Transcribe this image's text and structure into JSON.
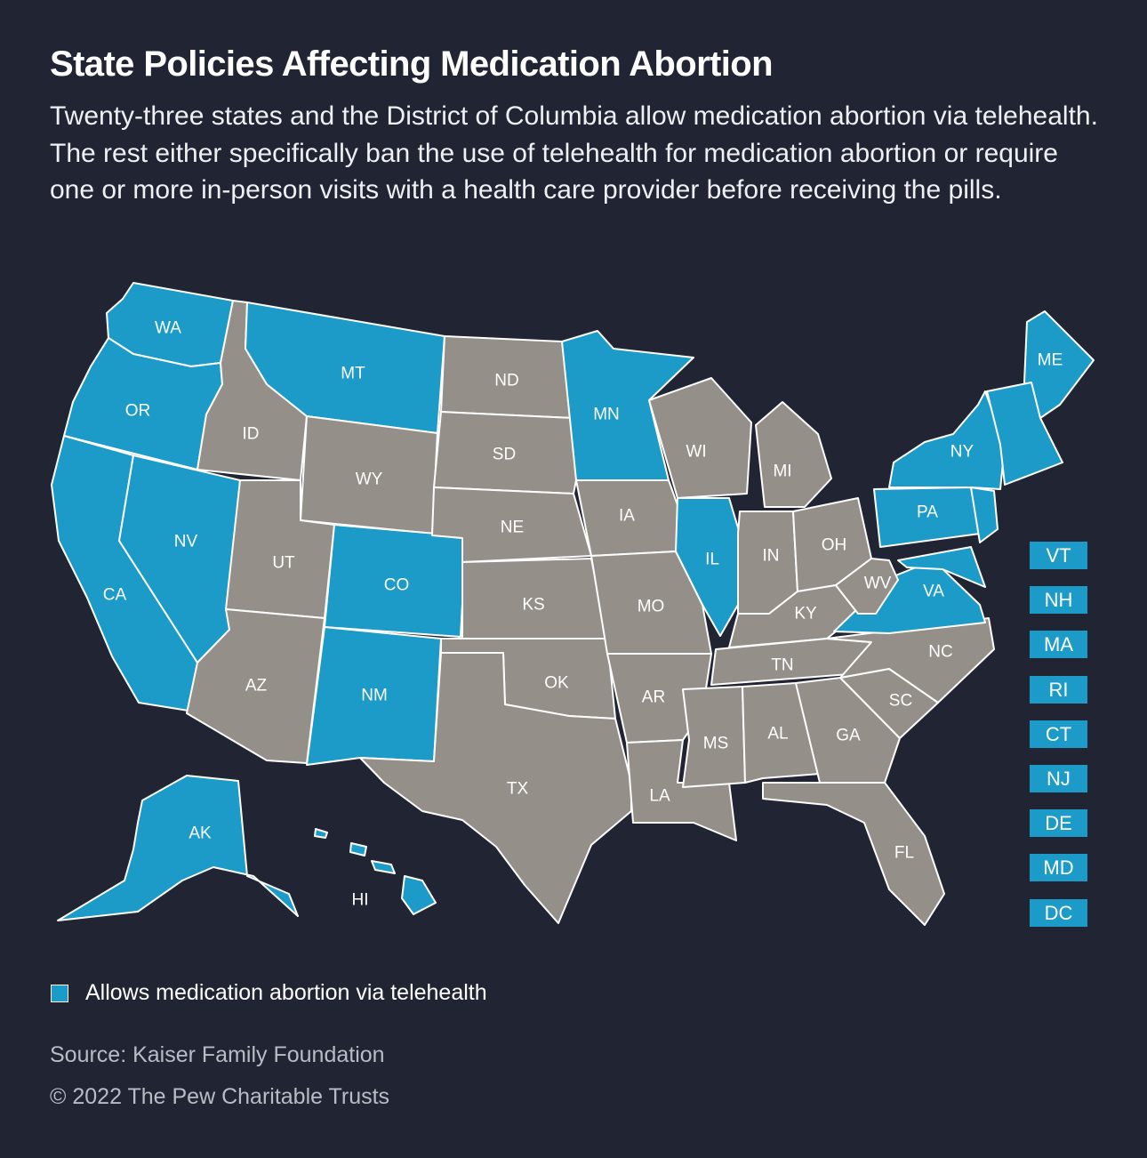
{
  "title": "State Policies Affecting Medication Abortion",
  "subtitle": "Twenty-three states and the District of Columbia allow medication abortion via telehealth. The rest either specifically ban the use of telehealth for medication abortion or require one or more in-person visits with a health care provider before receiving the pills.",
  "colors": {
    "background": "#212433",
    "allows": "#1c9bc9",
    "other": "#958f89",
    "border": "#ffffff"
  },
  "states": [
    {
      "code": "WA",
      "allows": true
    },
    {
      "code": "OR",
      "allows": true
    },
    {
      "code": "CA",
      "allows": true
    },
    {
      "code": "NV",
      "allows": true
    },
    {
      "code": "ID",
      "allows": false
    },
    {
      "code": "MT",
      "allows": true
    },
    {
      "code": "WY",
      "allows": false
    },
    {
      "code": "UT",
      "allows": false
    },
    {
      "code": "AZ",
      "allows": false
    },
    {
      "code": "CO",
      "allows": true
    },
    {
      "code": "NM",
      "allows": true
    },
    {
      "code": "ND",
      "allows": false
    },
    {
      "code": "SD",
      "allows": false
    },
    {
      "code": "NE",
      "allows": false
    },
    {
      "code": "KS",
      "allows": false
    },
    {
      "code": "OK",
      "allows": false
    },
    {
      "code": "TX",
      "allows": false
    },
    {
      "code": "MN",
      "allows": true
    },
    {
      "code": "IA",
      "allows": false
    },
    {
      "code": "MO",
      "allows": false
    },
    {
      "code": "AR",
      "allows": false
    },
    {
      "code": "LA",
      "allows": false
    },
    {
      "code": "WI",
      "allows": false
    },
    {
      "code": "IL",
      "allows": true
    },
    {
      "code": "MI",
      "allows": false
    },
    {
      "code": "IN",
      "allows": false
    },
    {
      "code": "OH",
      "allows": false
    },
    {
      "code": "KY",
      "allows": false
    },
    {
      "code": "TN",
      "allows": false
    },
    {
      "code": "MS",
      "allows": false
    },
    {
      "code": "AL",
      "allows": false
    },
    {
      "code": "GA",
      "allows": false
    },
    {
      "code": "FL",
      "allows": false
    },
    {
      "code": "SC",
      "allows": false
    },
    {
      "code": "NC",
      "allows": false
    },
    {
      "code": "VA",
      "allows": true
    },
    {
      "code": "WV",
      "allows": false
    },
    {
      "code": "PA",
      "allows": true
    },
    {
      "code": "NY",
      "allows": true
    },
    {
      "code": "ME",
      "allows": true
    },
    {
      "code": "AK",
      "allows": true
    },
    {
      "code": "HI",
      "allows": true
    },
    {
      "code": "VT",
      "allows": true
    },
    {
      "code": "NH",
      "allows": true
    },
    {
      "code": "MA",
      "allows": true
    },
    {
      "code": "RI",
      "allows": true
    },
    {
      "code": "CT",
      "allows": true
    },
    {
      "code": "NJ",
      "allows": true
    },
    {
      "code": "DE",
      "allows": true
    },
    {
      "code": "MD",
      "allows": true
    },
    {
      "code": "DC",
      "allows": true
    }
  ],
  "small_state_labels": [
    "VT",
    "NH",
    "MA",
    "RI",
    "CT",
    "NJ",
    "DE",
    "MD",
    "DC"
  ],
  "legend": {
    "label": "Allows medication abortion via telehealth"
  },
  "source": "Source: Kaiser Family Foundation",
  "copyright": "© 2022 The Pew Charitable Trusts"
}
